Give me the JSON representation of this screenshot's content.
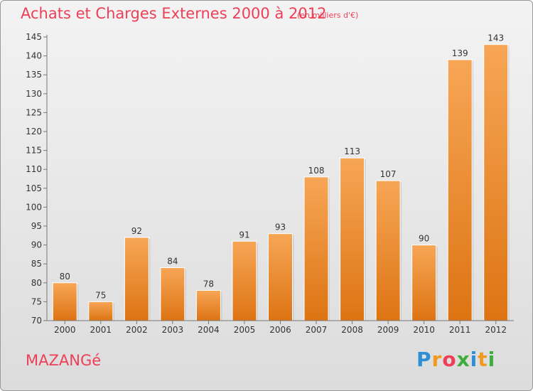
{
  "header": {
    "title": "Achats et Charges Externes 2000 à 2012",
    "subtitle": "(en milliers d'€)"
  },
  "footer": {
    "commune": "MAZANGé",
    "logo": "Proxiti"
  },
  "colors": {
    "accent": "#ee3f57",
    "bar_top": "#f7a656",
    "bar_bottom": "#dd7413"
  },
  "chart_data": {
    "type": "bar",
    "title": "Achats et Charges Externes 2000 à 2012",
    "subtitle": "(en milliers d'€)",
    "categories": [
      "2000",
      "2001",
      "2002",
      "2003",
      "2004",
      "2005",
      "2006",
      "2007",
      "2008",
      "2009",
      "2010",
      "2011",
      "2012"
    ],
    "values": [
      80,
      75,
      92,
      84,
      78,
      91,
      93,
      108,
      113,
      107,
      90,
      139,
      143
    ],
    "ylim": [
      70,
      145
    ],
    "yticks": [
      70,
      75,
      80,
      85,
      90,
      95,
      100,
      105,
      110,
      115,
      120,
      125,
      130,
      135,
      140,
      145
    ],
    "xlabel": "",
    "ylabel": "",
    "grid": false,
    "legend": "none"
  }
}
